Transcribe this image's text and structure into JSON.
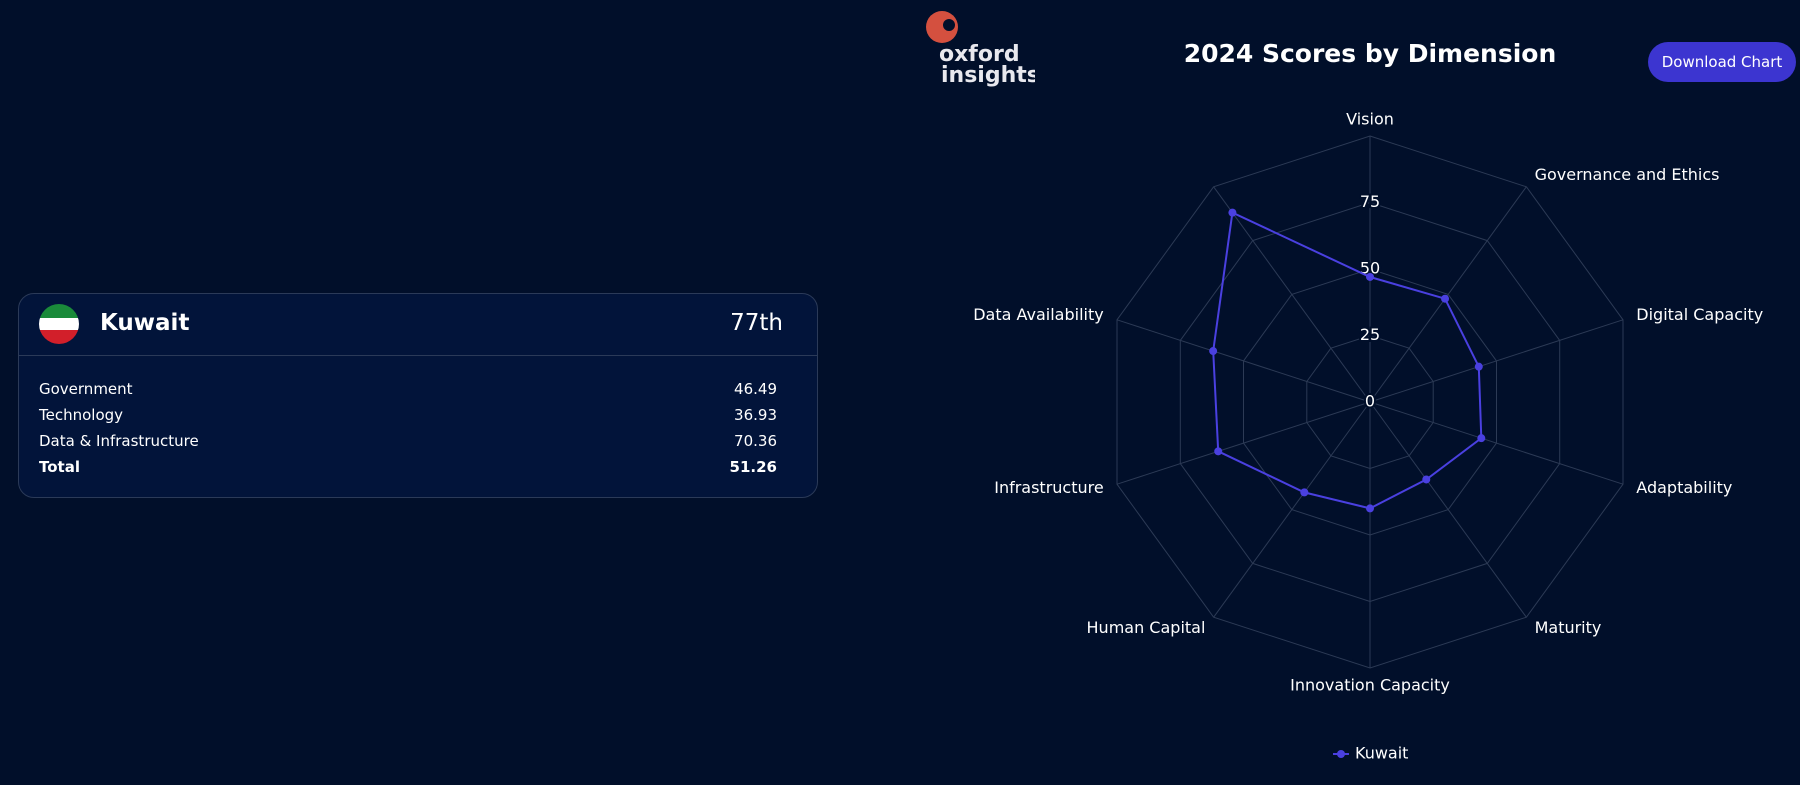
{
  "logo": {
    "line1": "oxford",
    "line2": "insights"
  },
  "button": "Download Chart",
  "card": {
    "country": "Kuwait",
    "rank": "77th",
    "rows": [
      [
        "Government",
        46.49
      ],
      [
        "Technology",
        36.93
      ],
      [
        "Data & Infrastructure",
        70.36
      ],
      [
        "Total",
        51.26
      ]
    ]
  },
  "chart_data": {
    "type": "radar",
    "title": "2024 Scores by Dimension",
    "categories": [
      "Vision",
      "Governance and Ethics",
      "Digital Capacity",
      "Adaptability",
      "Maturity",
      "Innovation Capacity",
      "Human Capital",
      "Infrastructure",
      "Data Availability",
      null
    ],
    "series": [
      {
        "name": "Kuwait",
        "color": "#4a40e0",
        "values": [
          47,
          48,
          43,
          44,
          36,
          40,
          42,
          60,
          62,
          88
        ]
      }
    ],
    "ylim": [
      0,
      100
    ],
    "yticks": [
      0,
      25,
      50,
      75
    ],
    "grid": true
  }
}
